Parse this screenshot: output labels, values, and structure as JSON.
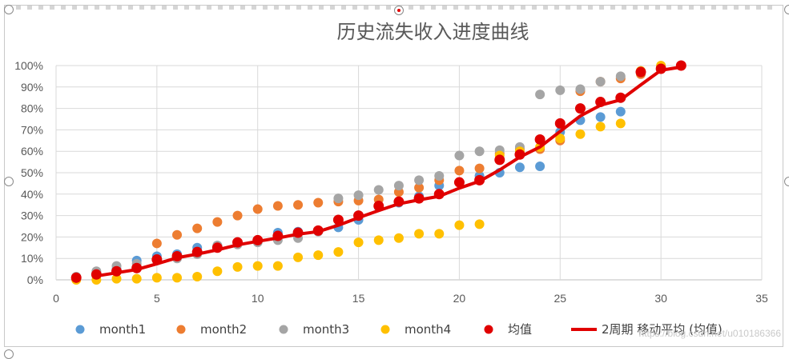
{
  "chart_data": {
    "type": "scatter",
    "title": "历史流失收入进度曲线",
    "xlabel": "",
    "ylabel": "",
    "xlim": [
      0,
      35
    ],
    "ylim": [
      0,
      1
    ],
    "x_ticks": [
      "0",
      "5",
      "10",
      "15",
      "20",
      "25",
      "30",
      "35"
    ],
    "y_ticks": [
      "0%",
      "10%",
      "20%",
      "30%",
      "40%",
      "50%",
      "60%",
      "70%",
      "80%",
      "90%",
      "100%"
    ],
    "grid": true,
    "legend_position": "bottom",
    "series": [
      {
        "name": "month1",
        "color": "#5b9bd5",
        "kind": "scatter",
        "points": [
          [
            1,
            0.01
          ],
          [
            2,
            0.03
          ],
          [
            3,
            0.05
          ],
          [
            4,
            0.09
          ],
          [
            5,
            0.11
          ],
          [
            6,
            0.12
          ],
          [
            7,
            0.15
          ],
          [
            8,
            0.16
          ],
          [
            9,
            0.17
          ],
          [
            10,
            0.18
          ],
          [
            11,
            0.22
          ],
          [
            12,
            0.225
          ],
          [
            13,
            0.23
          ],
          [
            14,
            0.245
          ],
          [
            15,
            0.28
          ],
          [
            16,
            0.34
          ],
          [
            17,
            0.36
          ],
          [
            18,
            0.39
          ],
          [
            19,
            0.44
          ],
          [
            20,
            0.455
          ],
          [
            21,
            0.485
          ],
          [
            22,
            0.5
          ],
          [
            23,
            0.525
          ],
          [
            24,
            0.53
          ],
          [
            25,
            0.69
          ],
          [
            26,
            0.745
          ],
          [
            27,
            0.76
          ],
          [
            28,
            0.785
          ]
        ]
      },
      {
        "name": "month2",
        "color": "#ed7d31",
        "kind": "scatter",
        "points": [
          [
            1,
            0.01
          ],
          [
            2,
            0.02
          ],
          [
            3,
            0.04
          ],
          [
            4,
            0.06
          ],
          [
            5,
            0.17
          ],
          [
            6,
            0.21
          ],
          [
            7,
            0.24
          ],
          [
            8,
            0.27
          ],
          [
            9,
            0.3
          ],
          [
            10,
            0.33
          ],
          [
            11,
            0.345
          ],
          [
            12,
            0.35
          ],
          [
            13,
            0.36
          ],
          [
            14,
            0.365
          ],
          [
            15,
            0.37
          ],
          [
            16,
            0.375
          ],
          [
            17,
            0.41
          ],
          [
            18,
            0.43
          ],
          [
            19,
            0.465
          ],
          [
            20,
            0.51
          ],
          [
            21,
            0.52
          ],
          [
            22,
            0.59
          ],
          [
            23,
            0.61
          ],
          [
            24,
            0.61
          ],
          [
            25,
            0.65
          ],
          [
            26,
            0.88
          ],
          [
            27,
            0.925
          ],
          [
            28,
            0.94
          ],
          [
            29,
            0.96
          ],
          [
            30,
            0.985
          ],
          [
            31,
            1.0
          ]
        ]
      },
      {
        "name": "month3",
        "color": "#a5a5a5",
        "kind": "scatter",
        "points": [
          [
            1,
            0.015
          ],
          [
            2,
            0.04
          ],
          [
            3,
            0.065
          ],
          [
            4,
            0.075
          ],
          [
            5,
            0.09
          ],
          [
            6,
            0.1
          ],
          [
            7,
            0.12
          ],
          [
            8,
            0.16
          ],
          [
            9,
            0.165
          ],
          [
            10,
            0.175
          ],
          [
            11,
            0.185
          ],
          [
            12,
            0.195
          ],
          [
            13,
            0.225
          ],
          [
            14,
            0.38
          ],
          [
            15,
            0.395
          ],
          [
            16,
            0.42
          ],
          [
            17,
            0.44
          ],
          [
            18,
            0.465
          ],
          [
            19,
            0.485
          ],
          [
            20,
            0.58
          ],
          [
            21,
            0.6
          ],
          [
            22,
            0.605
          ],
          [
            23,
            0.62
          ],
          [
            24,
            0.865
          ],
          [
            25,
            0.885
          ],
          [
            26,
            0.89
          ],
          [
            27,
            0.925
          ],
          [
            28,
            0.95
          ],
          [
            29,
            0.975
          ],
          [
            30,
            0.995
          ],
          [
            31,
            1.0
          ]
        ]
      },
      {
        "name": "month4",
        "color": "#ffc000",
        "kind": "scatter",
        "points": [
          [
            1,
            0.0
          ],
          [
            2,
            0.0
          ],
          [
            3,
            0.005
          ],
          [
            4,
            0.005
          ],
          [
            5,
            0.01
          ],
          [
            6,
            0.01
          ],
          [
            7,
            0.015
          ],
          [
            8,
            0.04
          ],
          [
            9,
            0.06
          ],
          [
            10,
            0.065
          ],
          [
            11,
            0.065
          ],
          [
            12,
            0.105
          ],
          [
            13,
            0.115
          ],
          [
            14,
            0.13
          ],
          [
            15,
            0.175
          ],
          [
            16,
            0.185
          ],
          [
            17,
            0.195
          ],
          [
            18,
            0.215
          ],
          [
            19,
            0.215
          ],
          [
            20,
            0.255
          ],
          [
            21,
            0.26
          ],
          [
            22,
            0.58
          ],
          [
            23,
            0.6
          ],
          [
            24,
            0.62
          ],
          [
            25,
            0.66
          ],
          [
            26,
            0.68
          ],
          [
            27,
            0.715
          ],
          [
            28,
            0.73
          ],
          [
            29,
            0.975
          ],
          [
            30,
            1.0
          ],
          [
            31,
            1.0
          ]
        ]
      },
      {
        "name": "均值",
        "color": "#e00000",
        "kind": "scatter",
        "points": [
          [
            1,
            0.01
          ],
          [
            2,
            0.025
          ],
          [
            3,
            0.04
          ],
          [
            4,
            0.055
          ],
          [
            5,
            0.095
          ],
          [
            6,
            0.11
          ],
          [
            7,
            0.13
          ],
          [
            8,
            0.15
          ],
          [
            9,
            0.175
          ],
          [
            10,
            0.185
          ],
          [
            11,
            0.205
          ],
          [
            12,
            0.22
          ],
          [
            13,
            0.23
          ],
          [
            14,
            0.28
          ],
          [
            15,
            0.3
          ],
          [
            16,
            0.345
          ],
          [
            17,
            0.365
          ],
          [
            18,
            0.38
          ],
          [
            19,
            0.4
          ],
          [
            20,
            0.455
          ],
          [
            21,
            0.465
          ],
          [
            22,
            0.56
          ],
          [
            23,
            0.585
          ],
          [
            24,
            0.655
          ],
          [
            25,
            0.73
          ],
          [
            26,
            0.8
          ],
          [
            27,
            0.83
          ],
          [
            28,
            0.85
          ],
          [
            29,
            0.97
          ],
          [
            30,
            0.985
          ],
          [
            31,
            1.0
          ]
        ]
      },
      {
        "name": "2周期 移动平均 (均值)",
        "color": "#e00000",
        "kind": "line",
        "points": [
          [
            2,
            0.018
          ],
          [
            3,
            0.033
          ],
          [
            4,
            0.048
          ],
          [
            5,
            0.075
          ],
          [
            6,
            0.103
          ],
          [
            7,
            0.12
          ],
          [
            8,
            0.14
          ],
          [
            9,
            0.163
          ],
          [
            10,
            0.18
          ],
          [
            11,
            0.195
          ],
          [
            12,
            0.213
          ],
          [
            13,
            0.225
          ],
          [
            14,
            0.255
          ],
          [
            15,
            0.29
          ],
          [
            16,
            0.323
          ],
          [
            17,
            0.355
          ],
          [
            18,
            0.373
          ],
          [
            19,
            0.39
          ],
          [
            20,
            0.428
          ],
          [
            21,
            0.46
          ],
          [
            22,
            0.513
          ],
          [
            23,
            0.573
          ],
          [
            24,
            0.62
          ],
          [
            25,
            0.693
          ],
          [
            26,
            0.765
          ],
          [
            27,
            0.815
          ],
          [
            28,
            0.84
          ],
          [
            29,
            0.91
          ],
          [
            30,
            0.978
          ],
          [
            31,
            0.993
          ]
        ]
      }
    ]
  },
  "watermark": "https://blog.csdn.net/u010186366"
}
